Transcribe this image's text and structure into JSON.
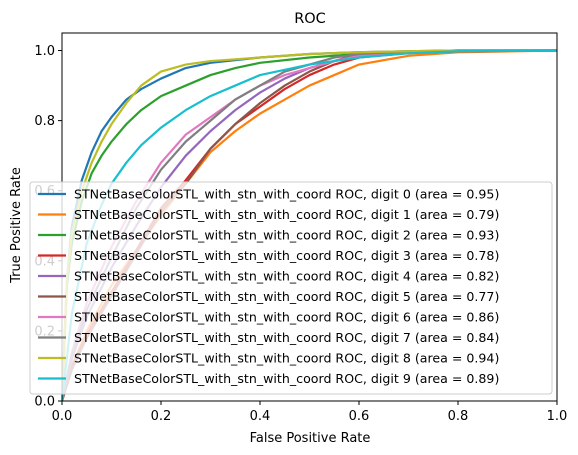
{
  "chart_data": {
    "type": "line",
    "title": "ROC",
    "xlabel": "False Positive Rate",
    "ylabel": "True Positive Rate",
    "xlim": [
      0.0,
      1.0
    ],
    "ylim": [
      0.0,
      1.05
    ],
    "xticks": [
      "0.0",
      "0.2",
      "0.4",
      "0.6",
      "0.8",
      "1.0"
    ],
    "yticks": [
      "0.0",
      "0.2",
      "0.4",
      "0.6",
      "0.8",
      "1.0"
    ],
    "grid": false,
    "legend_position": "lower-right",
    "series": [
      {
        "name": "STNetBaseColorSTL_with_stn_with_coord ROC, digit 0 (area = 0.95)",
        "color": "#1f77b4",
        "x": [
          0,
          0.01,
          0.02,
          0.04,
          0.06,
          0.08,
          0.1,
          0.13,
          0.16,
          0.2,
          0.25,
          0.3,
          0.4,
          0.5,
          0.6,
          0.7,
          0.8,
          1.0
        ],
        "y": [
          0,
          0.35,
          0.5,
          0.63,
          0.71,
          0.77,
          0.81,
          0.86,
          0.89,
          0.92,
          0.95,
          0.965,
          0.98,
          0.99,
          0.995,
          0.998,
          1.0,
          1.0
        ]
      },
      {
        "name": "STNetBaseColorSTL_with_stn_with_coord ROC, digit 1 (area = 0.79)",
        "color": "#ff7f0e",
        "x": [
          0,
          0.02,
          0.05,
          0.1,
          0.15,
          0.2,
          0.25,
          0.3,
          0.35,
          0.4,
          0.45,
          0.5,
          0.55,
          0.6,
          0.7,
          0.8,
          1.0
        ],
        "y": [
          0,
          0.1,
          0.2,
          0.33,
          0.43,
          0.53,
          0.62,
          0.71,
          0.77,
          0.82,
          0.86,
          0.9,
          0.93,
          0.96,
          0.985,
          0.995,
          1.0
        ]
      },
      {
        "name": "STNetBaseColorSTL_with_stn_with_coord ROC, digit 2 (area = 0.93)",
        "color": "#2ca02c",
        "x": [
          0,
          0.01,
          0.02,
          0.04,
          0.06,
          0.08,
          0.1,
          0.13,
          0.16,
          0.2,
          0.25,
          0.3,
          0.35,
          0.4,
          0.5,
          0.6,
          0.7,
          0.8,
          1.0
        ],
        "y": [
          0,
          0.33,
          0.45,
          0.57,
          0.65,
          0.7,
          0.74,
          0.79,
          0.83,
          0.87,
          0.9,
          0.93,
          0.95,
          0.965,
          0.98,
          0.99,
          0.997,
          1.0,
          1.0
        ]
      },
      {
        "name": "STNetBaseColorSTL_with_stn_with_coord ROC, digit 3 (area = 0.78)",
        "color": "#d62728",
        "x": [
          0,
          0.02,
          0.05,
          0.1,
          0.15,
          0.2,
          0.25,
          0.3,
          0.35,
          0.4,
          0.45,
          0.5,
          0.55,
          0.6,
          0.7,
          0.8,
          1.0
        ],
        "y": [
          0,
          0.1,
          0.19,
          0.31,
          0.43,
          0.55,
          0.63,
          0.72,
          0.79,
          0.84,
          0.89,
          0.93,
          0.96,
          0.98,
          0.993,
          0.998,
          1.0
        ]
      },
      {
        "name": "STNetBaseColorSTL_with_stn_with_coord ROC, digit 4 (area = 0.82)",
        "color": "#9467bd",
        "x": [
          0,
          0.02,
          0.05,
          0.1,
          0.15,
          0.2,
          0.25,
          0.3,
          0.35,
          0.4,
          0.45,
          0.5,
          0.55,
          0.6,
          0.7,
          0.8,
          1.0
        ],
        "y": [
          0,
          0.12,
          0.24,
          0.38,
          0.5,
          0.61,
          0.7,
          0.77,
          0.83,
          0.88,
          0.92,
          0.95,
          0.97,
          0.985,
          0.995,
          1.0,
          1.0
        ]
      },
      {
        "name": "STNetBaseColorSTL_with_stn_with_coord ROC, digit 5 (area = 0.77)",
        "color": "#8c564b",
        "x": [
          0,
          0.02,
          0.05,
          0.1,
          0.15,
          0.2,
          0.25,
          0.3,
          0.35,
          0.4,
          0.45,
          0.5,
          0.55,
          0.6,
          0.7,
          0.8,
          1.0
        ],
        "y": [
          0,
          0.09,
          0.18,
          0.3,
          0.42,
          0.54,
          0.62,
          0.72,
          0.79,
          0.85,
          0.9,
          0.94,
          0.97,
          0.99,
          0.997,
          1.0,
          1.0
        ]
      },
      {
        "name": "STNetBaseColorSTL_with_stn_with_coord ROC, digit 6 (area = 0.86)",
        "color": "#e377c2",
        "x": [
          0,
          0.02,
          0.05,
          0.1,
          0.15,
          0.2,
          0.25,
          0.3,
          0.35,
          0.4,
          0.45,
          0.5,
          0.55,
          0.6,
          0.7,
          0.8,
          1.0
        ],
        "y": [
          0,
          0.14,
          0.28,
          0.44,
          0.57,
          0.68,
          0.76,
          0.81,
          0.86,
          0.9,
          0.93,
          0.95,
          0.97,
          0.985,
          0.995,
          1.0,
          1.0
        ]
      },
      {
        "name": "STNetBaseColorSTL_with_stn_with_coord ROC, digit 7 (area = 0.84)",
        "color": "#7f7f7f",
        "x": [
          0,
          0.02,
          0.05,
          0.1,
          0.15,
          0.2,
          0.25,
          0.3,
          0.35,
          0.4,
          0.45,
          0.5,
          0.55,
          0.6,
          0.7,
          0.8,
          1.0
        ],
        "y": [
          0,
          0.13,
          0.26,
          0.41,
          0.55,
          0.66,
          0.74,
          0.8,
          0.86,
          0.9,
          0.94,
          0.96,
          0.98,
          0.99,
          0.997,
          1.0,
          1.0
        ]
      },
      {
        "name": "STNetBaseColorSTL_with_stn_with_coord ROC, digit 8 (area = 0.94)",
        "color": "#bcbd22",
        "x": [
          0,
          0.01,
          0.02,
          0.04,
          0.06,
          0.08,
          0.1,
          0.13,
          0.16,
          0.2,
          0.25,
          0.3,
          0.35,
          0.4,
          0.5,
          0.6,
          0.7,
          0.8,
          1.0
        ],
        "y": [
          0,
          0.35,
          0.48,
          0.6,
          0.68,
          0.74,
          0.79,
          0.85,
          0.9,
          0.94,
          0.96,
          0.97,
          0.975,
          0.98,
          0.99,
          0.995,
          0.998,
          1.0,
          1.0
        ]
      },
      {
        "name": "STNetBaseColorSTL_with_stn_with_coord ROC, digit 9 (area = 0.89)",
        "color": "#17becf",
        "x": [
          0,
          0.02,
          0.05,
          0.08,
          0.1,
          0.13,
          0.16,
          0.2,
          0.25,
          0.3,
          0.35,
          0.4,
          0.5,
          0.6,
          0.7,
          0.8,
          1.0
        ],
        "y": [
          0,
          0.25,
          0.45,
          0.56,
          0.62,
          0.68,
          0.73,
          0.78,
          0.83,
          0.87,
          0.9,
          0.93,
          0.96,
          0.98,
          0.992,
          0.998,
          1.0
        ]
      }
    ]
  }
}
